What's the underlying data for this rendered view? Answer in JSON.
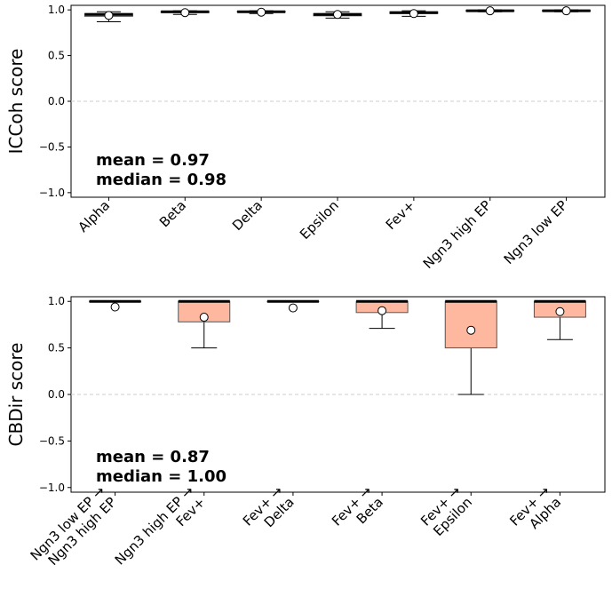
{
  "chart_data": [
    {
      "type": "box",
      "ylabel": "ICCoh score",
      "ylim": [
        -1.05,
        1.05
      ],
      "yticks": [
        -1.0,
        -0.5,
        0.0,
        0.5,
        1.0
      ],
      "ytick_labels": [
        "−1.0",
        "−0.5",
        "0.0",
        "0.5",
        "1.0"
      ],
      "zero_line": "dashed",
      "categories": [
        "Alpha",
        "Beta",
        "Delta",
        "Epsilon",
        "Fev+",
        "Ngn3 high EP",
        "Ngn3 low EP"
      ],
      "boxes": [
        {
          "whislo": 0.87,
          "q1": 0.93,
          "med": 0.95,
          "q3": 0.96,
          "whishi": 0.98,
          "mean": 0.94
        },
        {
          "whislo": 0.95,
          "q1": 0.97,
          "med": 0.98,
          "q3": 0.985,
          "whishi": 0.99,
          "mean": 0.97
        },
        {
          "whislo": 0.96,
          "q1": 0.975,
          "med": 0.98,
          "q3": 0.985,
          "whishi": 0.99,
          "mean": 0.975
        },
        {
          "whislo": 0.91,
          "q1": 0.935,
          "med": 0.95,
          "q3": 0.96,
          "whishi": 0.98,
          "mean": 0.95
        },
        {
          "whislo": 0.93,
          "q1": 0.96,
          "med": 0.97,
          "q3": 0.98,
          "whishi": 0.99,
          "mean": 0.96
        },
        {
          "whislo": 0.98,
          "q1": 0.985,
          "med": 0.99,
          "q3": 0.995,
          "whishi": 1.0,
          "mean": 0.99
        },
        {
          "whislo": 0.98,
          "q1": 0.985,
          "med": 0.99,
          "q3": 0.995,
          "whishi": 1.0,
          "mean": 0.99
        }
      ],
      "box_color": "#ffb8a0",
      "annotation": [
        "mean = 0.97",
        "median = 0.98"
      ]
    },
    {
      "type": "box",
      "ylabel": "CBDir score",
      "ylim": [
        -1.05,
        1.05
      ],
      "yticks": [
        -1.0,
        -0.5,
        0.0,
        0.5,
        1.0
      ],
      "ytick_labels": [
        "−1.0",
        "−0.5",
        "0.0",
        "0.5",
        "1.0"
      ],
      "zero_line": "dashed",
      "categories": [
        [
          "Ngn3 low EP →",
          "Ngn3 high EP"
        ],
        [
          "Ngn3 high EP →",
          "Fev+"
        ],
        [
          "Fev+ →",
          "Delta"
        ],
        [
          "Fev+ →",
          "Beta"
        ],
        [
          "Fev+ →",
          "Epsilon"
        ],
        [
          "Fev+ →",
          "Alpha"
        ]
      ],
      "boxes": [
        {
          "whislo": 1.0,
          "q1": 1.0,
          "med": 1.0,
          "q3": 1.0,
          "whishi": 1.0,
          "mean": 0.94
        },
        {
          "whislo": 0.5,
          "q1": 0.78,
          "med": 1.0,
          "q3": 1.0,
          "whishi": 1.0,
          "mean": 0.83
        },
        {
          "whislo": 1.0,
          "q1": 1.0,
          "med": 1.0,
          "q3": 1.0,
          "whishi": 1.0,
          "mean": 0.93
        },
        {
          "whislo": 0.71,
          "q1": 0.88,
          "med": 1.0,
          "q3": 1.0,
          "whishi": 1.0,
          "mean": 0.9
        },
        {
          "whislo": 0.0,
          "q1": 0.5,
          "med": 1.0,
          "q3": 1.0,
          "whishi": 1.0,
          "mean": 0.69
        },
        {
          "whislo": 0.59,
          "q1": 0.83,
          "med": 1.0,
          "q3": 1.0,
          "whishi": 1.0,
          "mean": 0.89
        }
      ],
      "box_color": "#ffb8a0",
      "annotation": [
        "mean = 0.87",
        "median = 1.00"
      ]
    }
  ]
}
